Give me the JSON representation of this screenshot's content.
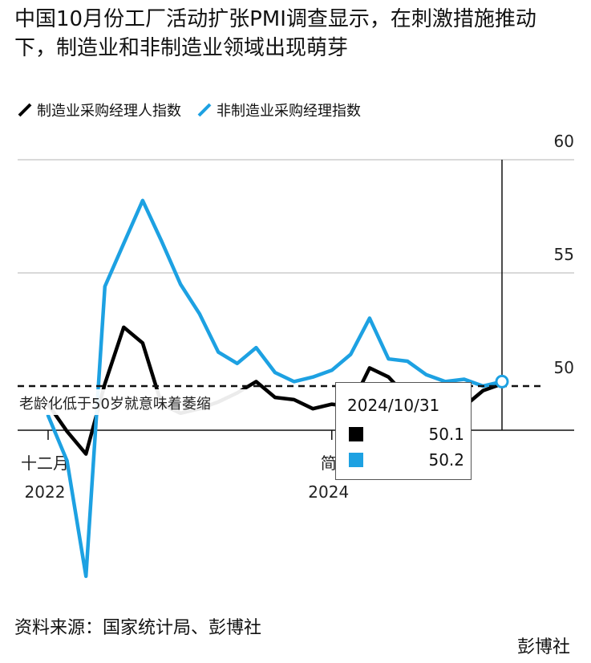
{
  "header": {
    "title": "中国10月份工厂活动扩张PMI调查显示，在刺激措施推动下，制造业和非制造业领域出现萌芽"
  },
  "chart_data": {
    "type": "line",
    "ylim": [
      44,
      60
    ],
    "yticks": [
      60,
      55,
      50
    ],
    "xlim": [
      "2022-10",
      "2024-10"
    ],
    "xtick_labels": [
      {
        "x": "2022-10",
        "label": "十二月",
        "year": "2022"
      },
      {
        "x": "2024-01",
        "label": "简",
        "year": "2024"
      }
    ],
    "reference_line": {
      "y": 50,
      "label": "老龄化低于50岁就意味着萎缩"
    },
    "series": [
      {
        "name": "制造业采购经理人指数",
        "color": "#000000",
        "x": [
          "2022-10",
          "2022-11",
          "2022-12",
          "2023-01",
          "2023-02",
          "2023-03",
          "2023-04",
          "2023-05",
          "2023-06",
          "2023-07",
          "2023-08",
          "2023-09",
          "2023-10",
          "2023-11",
          "2023-12",
          "2024-01",
          "2024-02",
          "2024-03",
          "2024-04",
          "2024-05",
          "2024-06",
          "2024-07",
          "2024-08",
          "2024-09",
          "2024-10"
        ],
        "values": [
          49.2,
          48.0,
          47.0,
          50.1,
          52.6,
          51.9,
          49.2,
          48.8,
          49.0,
          49.3,
          49.7,
          50.2,
          49.5,
          49.4,
          49.0,
          49.2,
          49.1,
          50.8,
          50.4,
          49.5,
          49.5,
          49.4,
          49.1,
          49.8,
          50.1
        ]
      },
      {
        "name": "非制造业采购经理指数",
        "color": "#1DA1E2",
        "x": [
          "2022-10",
          "2022-11",
          "2022-12",
          "2023-01",
          "2023-02",
          "2023-03",
          "2023-04",
          "2023-05",
          "2023-06",
          "2023-07",
          "2023-08",
          "2023-09",
          "2023-10",
          "2023-11",
          "2023-12",
          "2024-01",
          "2024-02",
          "2024-03",
          "2024-04",
          "2024-05",
          "2024-06",
          "2024-07",
          "2024-08",
          "2024-09",
          "2024-10"
        ],
        "values": [
          48.7,
          46.7,
          41.6,
          54.4,
          56.3,
          58.2,
          56.4,
          54.5,
          53.2,
          51.5,
          51.0,
          51.7,
          50.6,
          50.2,
          50.4,
          50.7,
          51.4,
          53.0,
          51.2,
          51.1,
          50.5,
          50.2,
          50.3,
          50.0,
          50.2
        ]
      }
    ],
    "tooltip": {
      "date": "2024/10/31",
      "rows": [
        {
          "color": "#000000",
          "value": "50.1"
        },
        {
          "color": "#1DA1E2",
          "value": "50.2"
        }
      ]
    }
  },
  "footer": {
    "source": "资料来源：国家统计局、彭博社",
    "brand": "彭博社"
  }
}
